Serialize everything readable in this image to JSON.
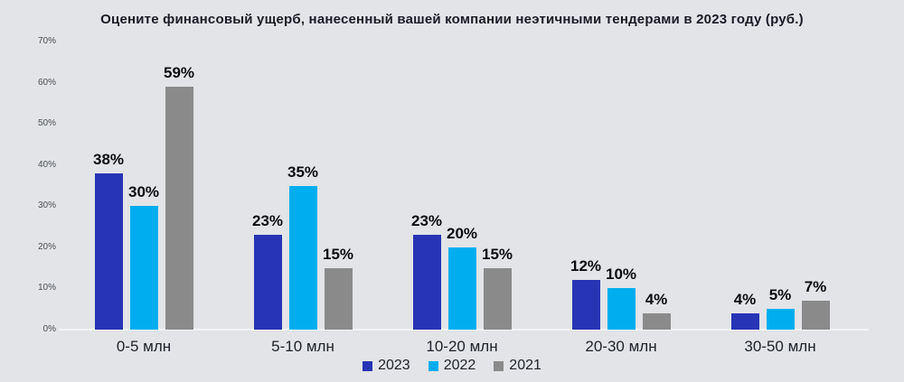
{
  "chart_data": {
    "type": "bar",
    "title": "Оцените финансовый ущерб, нанесенный вашей компании неэтичными тендерами в 2023 году (руб.)",
    "categories": [
      "0-5 млн",
      "5-10 млн",
      "10-20 млн",
      "20-30 млн",
      "30-50 млн"
    ],
    "series": [
      {
        "name": "2023",
        "color": "#2734b5",
        "values": [
          38,
          23,
          23,
          12,
          4
        ]
      },
      {
        "name": "2022",
        "color": "#00aeef",
        "values": [
          30,
          35,
          20,
          10,
          5
        ]
      },
      {
        "name": "2021",
        "color": "#8a8a8a",
        "values": [
          59,
          15,
          15,
          4,
          7
        ]
      }
    ],
    "value_suffix": "%",
    "y_axis": {
      "min": 0,
      "max": 70,
      "step": 10,
      "tick_suffix": "%"
    },
    "grid": false,
    "legend_position": "bottom",
    "background_color": "#e2e4e7",
    "xlabel": "",
    "ylabel": ""
  }
}
